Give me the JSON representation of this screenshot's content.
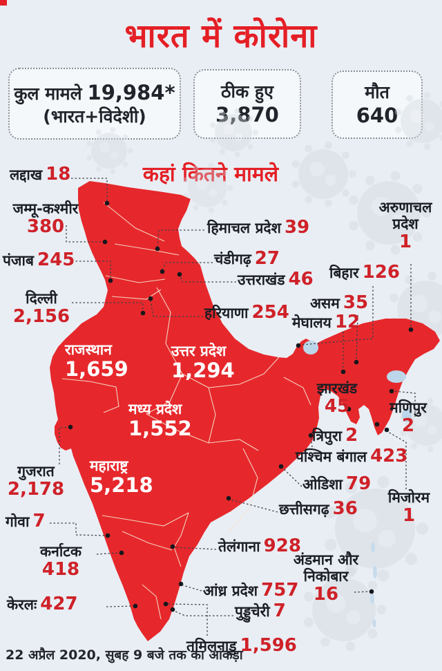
{
  "header": {
    "title": "भारत में कोरोना"
  },
  "stats": [
    {
      "label": "कुल मामले",
      "value": "19,984*",
      "sublabel": "(भारत+विदेशी)"
    },
    {
      "label": "ठीक हुए",
      "value": "3,870"
    },
    {
      "label": "मौत",
      "value": "640"
    }
  ],
  "map": {
    "heading": "कहां कितने मामले",
    "states": [
      {
        "name": "लद्दाख",
        "cases": "18"
      },
      {
        "name": "जम्मू-कश्मीर",
        "cases": "380"
      },
      {
        "name": "पंजाब",
        "cases": "245"
      },
      {
        "name": "दिल्ली",
        "cases": "2,156"
      },
      {
        "name": "हिमाचल प्रदेश",
        "cases": "39"
      },
      {
        "name": "चंडीगढ़",
        "cases": "27"
      },
      {
        "name": "उत्तराखंड",
        "cases": "46"
      },
      {
        "name": "बिहार",
        "cases": "126"
      },
      {
        "name": "असम",
        "cases": "35"
      },
      {
        "name": "मेघालय",
        "cases": "12"
      },
      {
        "name": "हरियाणा",
        "cases": "254"
      },
      {
        "name": "अरुणाचल प्रदेश",
        "cases": "1"
      },
      {
        "name": "राजस्थान",
        "cases": "1,659"
      },
      {
        "name": "उत्तर प्रदेश",
        "cases": "1,294"
      },
      {
        "name": "मध्य प्रदेश",
        "cases": "1,552"
      },
      {
        "name": "महाराष्ट्र",
        "cases": "5,218"
      },
      {
        "name": "झारखंड",
        "cases": "45"
      },
      {
        "name": "मणिपुर",
        "cases": "2"
      },
      {
        "name": "त्रिपुरा",
        "cases": "2"
      },
      {
        "name": "पश्चिम बंगाल",
        "cases": "423"
      },
      {
        "name": "ओडिशा",
        "cases": "79"
      },
      {
        "name": "मिजोरम",
        "cases": "1"
      },
      {
        "name": "छत्तीसगढ़",
        "cases": "36"
      },
      {
        "name": "गुजरात",
        "cases": "2,178"
      },
      {
        "name": "गोवा",
        "cases": "7"
      },
      {
        "name": "कर्नाटक",
        "cases": "418"
      },
      {
        "name": "केरलः",
        "cases": "427"
      },
      {
        "name": "तेलंगाना",
        "cases": "928"
      },
      {
        "name": "आंध्र प्रदेश",
        "cases": "757"
      },
      {
        "name": "पुड्डुचेरी",
        "cases": "7"
      },
      {
        "name": "तमिलनाडु",
        "cases": "1,596"
      },
      {
        "name": "अंडमान और निकोबार",
        "cases": "16"
      }
    ]
  },
  "footer": {
    "note": "22 अप्रैल 2020, सुबह 9 बजे तक का आंकड़ा"
  },
  "colors": {
    "map_red": "#e6282c",
    "accent_red": "#e41f25",
    "number_red": "#cf2128",
    "background": "#e9eef4",
    "label_text": "#1b1e24"
  }
}
